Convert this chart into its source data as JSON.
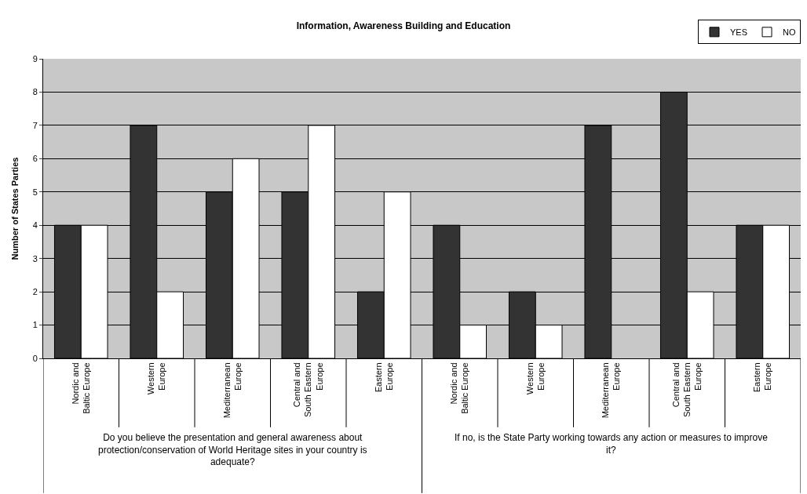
{
  "chart_data": {
    "type": "bar",
    "title": "Information, Awareness Building and Education",
    "ylabel": "Number of States Parties",
    "categories": [
      "Nordic and Baltic Europe",
      "Western Europe",
      "Mediterranean Europe",
      "Central and South Eastern Europe",
      "Eastern Europe",
      "Nordic and Baltic Europe",
      "Western Europe",
      "Mediterranean Europe",
      "Central and South Eastern Europe",
      "Eastern Europe"
    ],
    "series": [
      {
        "name": "YES",
        "color": "#333333",
        "values": [
          4,
          7,
          5,
          5,
          2,
          4,
          2,
          7,
          8,
          4
        ]
      },
      {
        "name": "NO",
        "color": "#ffffff",
        "values": [
          4,
          2,
          6,
          7,
          5,
          1,
          1,
          null,
          2,
          4
        ]
      }
    ],
    "annotations": [
      "Do you believe the presentation and general awareness about protection/conservation of World Heritage sites in your country is adequate?",
      "If no, is the State Party working towards any action or measures to improve it?"
    ],
    "ylim": [
      0,
      9
    ],
    "yticks": [
      0,
      1,
      2,
      3,
      4,
      5,
      6,
      7,
      8,
      9
    ],
    "grid": "y",
    "legend": "top right"
  }
}
